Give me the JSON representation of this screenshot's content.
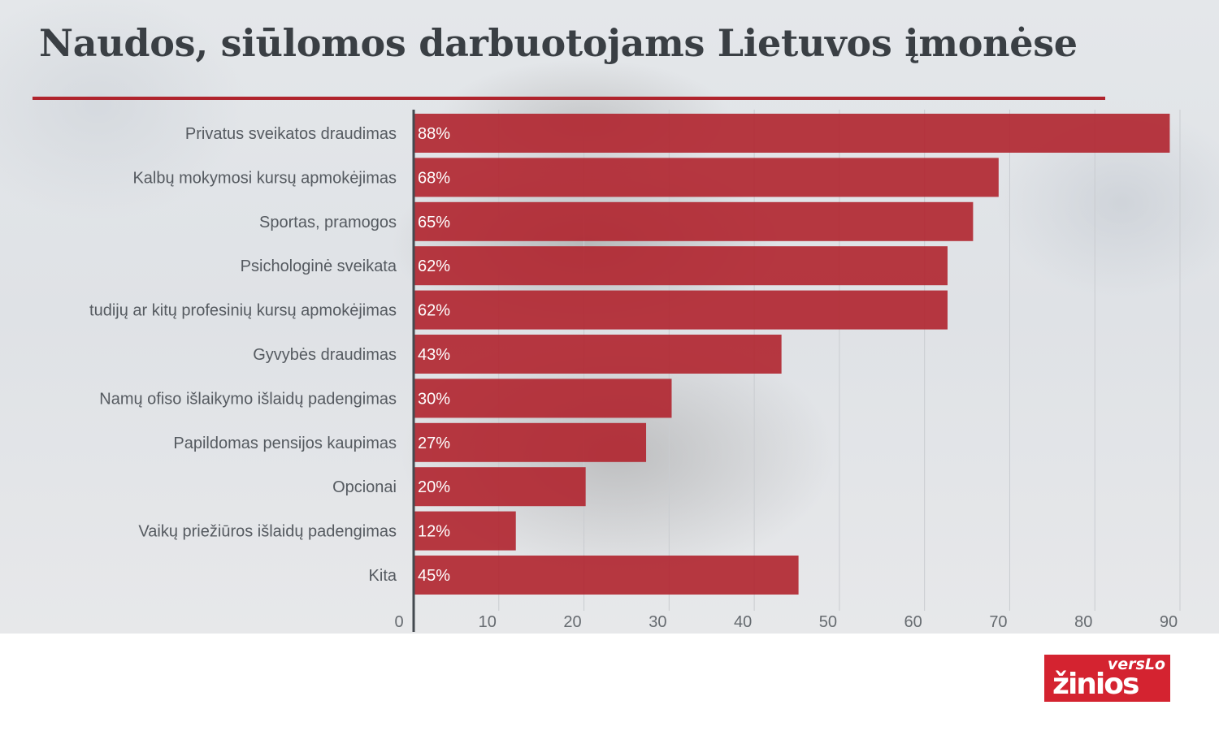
{
  "page": {
    "title": "Naudos, siūlomos darbuotojams Lietuvos įmonėse"
  },
  "logo": {
    "top_text": "versLo",
    "main_text": "žinios"
  },
  "colors": {
    "bar": "#b0242d",
    "accent_rule": "#b0242d",
    "label_text": "#555a60",
    "bar_label": "#ffffff",
    "logo": "#d42330"
  },
  "chart_data": {
    "type": "bar",
    "orientation": "horizontal",
    "categories": [
      "Privatus sveikatos draudimas",
      "Kalbų mokymosi kursų apmokėjimas",
      "Sportas, pramogos",
      "Psichologinė sveikata",
      "tudijų ar kitų profesinių kursų apmokėjimas",
      "Gyvybės draudimas",
      "Namų ofiso išlaikymo išlaidų padengimas",
      "Papildomas pensijos kaupimas",
      "Opcionai",
      "Vaikų priežiūros išlaidų padengimas",
      "Kita"
    ],
    "values": [
      88,
      68,
      65,
      62,
      62,
      43,
      30,
      27,
      20,
      12,
      45
    ],
    "bar_length_values": [
      88.8,
      68.7,
      65.7,
      62.7,
      62.7,
      43.2,
      30.3,
      27.3,
      20.2,
      12.0,
      45.2
    ],
    "value_labels": [
      "88%",
      "68%",
      "65%",
      "62%",
      "62%",
      "43%",
      "30%",
      "27%",
      "20%",
      "12%",
      "45%"
    ],
    "xlim": [
      0,
      90
    ],
    "xticks": [
      0,
      10,
      20,
      30,
      40,
      50,
      60,
      70,
      80,
      90
    ],
    "grid": true
  }
}
